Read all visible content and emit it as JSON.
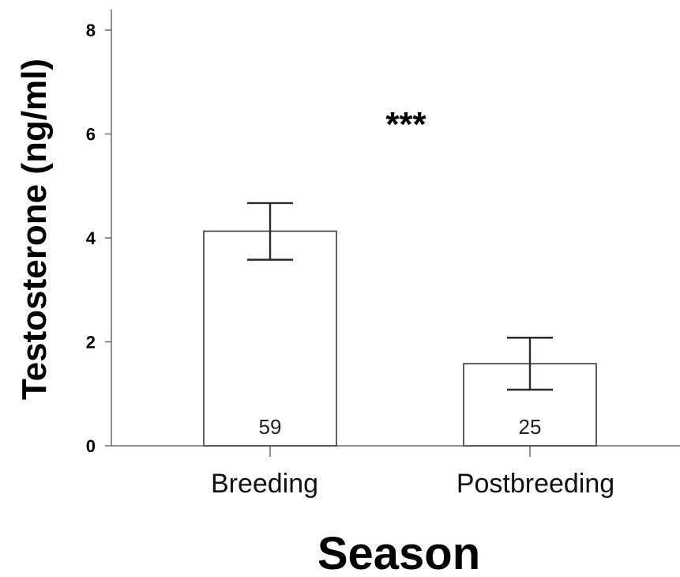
{
  "chart_data": {
    "type": "bar",
    "categories": [
      "Breeding",
      "Postbreeding"
    ],
    "values": [
      4.13,
      1.58
    ],
    "error_upper": [
      4.67,
      2.08
    ],
    "error_lower": [
      3.58,
      1.08
    ],
    "sample_sizes": [
      "59",
      "25"
    ],
    "ylim": [
      0,
      8
    ],
    "yticks": [
      "0",
      "2",
      "4",
      "6",
      "8"
    ],
    "xlabel": "Season",
    "ylabel": "Testosterone (ng/ml)",
    "annotation": "***",
    "grid": false,
    "legend": "none",
    "bar_fill": "#ffffff",
    "bar_edge": "#3a3a3a"
  }
}
